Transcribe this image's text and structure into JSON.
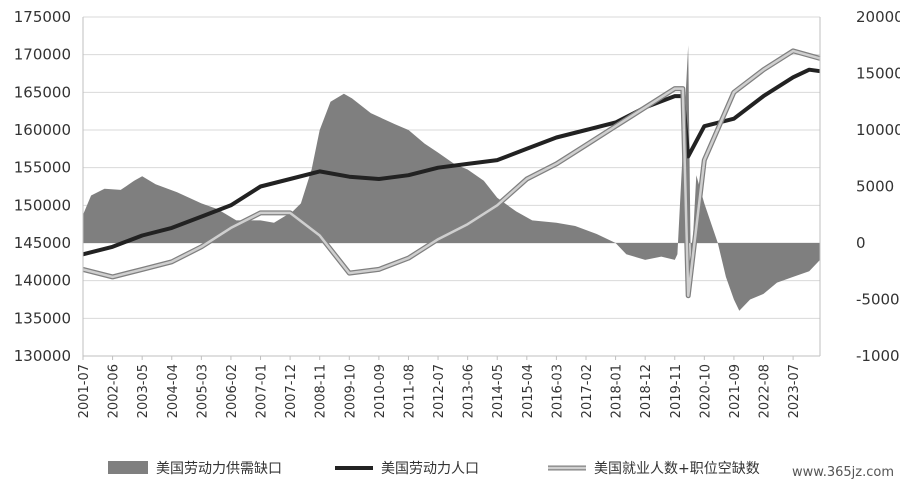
{
  "chart_data": {
    "type": "line",
    "left_axis": {
      "ticks": [
        130000,
        135000,
        140000,
        145000,
        150000,
        155000,
        160000,
        165000,
        170000,
        175000
      ],
      "ylim": [
        130000,
        175000
      ]
    },
    "right_axis": {
      "ticks": [
        -10000,
        -5000,
        0,
        5000,
        10000,
        15000,
        20000
      ],
      "ylim": [
        -10000,
        20000
      ]
    },
    "x_range": [
      "2001-07",
      "2024-05"
    ],
    "x_tick_labels": [
      "2001-07",
      "2002-06",
      "2003-05",
      "2004-04",
      "2005-03",
      "2006-02",
      "2007-01",
      "2007-12",
      "2008-11",
      "2009-10",
      "2010-09",
      "2011-08",
      "2012-07",
      "2013-06",
      "2014-05",
      "2015-04",
      "2016-03",
      "2017-02",
      "2018-01",
      "2018-12",
      "2019-11",
      "2020-10",
      "2021-09",
      "2022-08",
      "2023-07"
    ],
    "legend_position": "bottom",
    "grid": "horizontal",
    "series": [
      {
        "name": "美国劳动力供需缺口",
        "kind": "area",
        "axis": "right",
        "color": "#7f7f7f",
        "points": [
          [
            "2001-07",
            2500
          ],
          [
            "2001-10",
            4200
          ],
          [
            "2002-03",
            4800
          ],
          [
            "2002-09",
            4700
          ],
          [
            "2003-02",
            5500
          ],
          [
            "2003-05",
            5900
          ],
          [
            "2003-10",
            5200
          ],
          [
            "2004-06",
            4500
          ],
          [
            "2005-03",
            3500
          ],
          [
            "2005-09",
            3000
          ],
          [
            "2006-04",
            2000
          ],
          [
            "2007-01",
            2000
          ],
          [
            "2007-06",
            1800
          ],
          [
            "2008-01",
            2800
          ],
          [
            "2008-04",
            3500
          ],
          [
            "2008-08",
            6500
          ],
          [
            "2008-11",
            10000
          ],
          [
            "2009-03",
            12500
          ],
          [
            "2009-08",
            13200
          ],
          [
            "2009-11",
            12800
          ],
          [
            "2010-06",
            11500
          ],
          [
            "2011-03",
            10500
          ],
          [
            "2011-08",
            10000
          ],
          [
            "2012-02",
            8800
          ],
          [
            "2012-07",
            8000
          ],
          [
            "2013-01",
            7000
          ],
          [
            "2013-06",
            6500
          ],
          [
            "2013-12",
            5500
          ],
          [
            "2014-05",
            4000
          ],
          [
            "2014-12",
            2800
          ],
          [
            "2015-06",
            2000
          ],
          [
            "2016-03",
            1800
          ],
          [
            "2016-10",
            1500
          ],
          [
            "2017-06",
            800
          ],
          [
            "2018-01",
            0
          ],
          [
            "2018-05",
            -1000
          ],
          [
            "2018-12",
            -1500
          ],
          [
            "2019-06",
            -1200
          ],
          [
            "2019-11",
            -1500
          ],
          [
            "2019-12",
            -1000
          ],
          [
            "2020-04",
            17500
          ],
          [
            "2020-05",
            -3000
          ],
          [
            "2020-07",
            6000
          ],
          [
            "2020-10",
            3500
          ],
          [
            "2021-03",
            0
          ],
          [
            "2021-06",
            -3000
          ],
          [
            "2021-09",
            -5000
          ],
          [
            "2021-11",
            -6000
          ],
          [
            "2022-03",
            -5000
          ],
          [
            "2022-08",
            -4500
          ],
          [
            "2023-01",
            -3500
          ],
          [
            "2023-07",
            -3000
          ],
          [
            "2024-01",
            -2500
          ],
          [
            "2024-05",
            -1500
          ]
        ]
      },
      {
        "name": "美国劳动力人口",
        "kind": "line",
        "axis": "left",
        "color": "#222222",
        "points": [
          [
            "2001-07",
            143500
          ],
          [
            "2002-06",
            144500
          ],
          [
            "2003-05",
            146000
          ],
          [
            "2004-04",
            147000
          ],
          [
            "2005-03",
            148500
          ],
          [
            "2006-02",
            150000
          ],
          [
            "2007-01",
            152500
          ],
          [
            "2007-12",
            153500
          ],
          [
            "2008-11",
            154500
          ],
          [
            "2009-10",
            153800
          ],
          [
            "2010-09",
            153500
          ],
          [
            "2011-08",
            154000
          ],
          [
            "2012-07",
            155000
          ],
          [
            "2013-06",
            155500
          ],
          [
            "2014-05",
            156000
          ],
          [
            "2015-04",
            157500
          ],
          [
            "2016-03",
            159000
          ],
          [
            "2017-02",
            160000
          ],
          [
            "2018-01",
            161000
          ],
          [
            "2018-12",
            163000
          ],
          [
            "2019-11",
            164500
          ],
          [
            "2020-02",
            164500
          ],
          [
            "2020-04",
            156500
          ],
          [
            "2020-10",
            160500
          ],
          [
            "2021-09",
            161500
          ],
          [
            "2022-08",
            164500
          ],
          [
            "2023-07",
            167000
          ],
          [
            "2024-01",
            168000
          ],
          [
            "2024-05",
            167800
          ]
        ]
      },
      {
        "name": "美国就业人数+职位空缺数",
        "kind": "line",
        "axis": "left",
        "color": "#a6a6a6",
        "points": [
          [
            "2001-07",
            141500
          ],
          [
            "2002-06",
            140500
          ],
          [
            "2003-05",
            141500
          ],
          [
            "2004-04",
            142500
          ],
          [
            "2005-03",
            144500
          ],
          [
            "2006-02",
            147000
          ],
          [
            "2007-01",
            149000
          ],
          [
            "2007-12",
            149000
          ],
          [
            "2008-11",
            146000
          ],
          [
            "2009-10",
            141000
          ],
          [
            "2010-09",
            141500
          ],
          [
            "2011-08",
            143000
          ],
          [
            "2012-07",
            145500
          ],
          [
            "2013-06",
            147500
          ],
          [
            "2014-05",
            150000
          ],
          [
            "2015-04",
            153500
          ],
          [
            "2016-03",
            155500
          ],
          [
            "2017-02",
            158000
          ],
          [
            "2018-01",
            160500
          ],
          [
            "2018-12",
            163000
          ],
          [
            "2019-11",
            165500
          ],
          [
            "2020-02",
            165500
          ],
          [
            "2020-04",
            138000
          ],
          [
            "2020-10",
            156000
          ],
          [
            "2021-09",
            165000
          ],
          [
            "2022-08",
            168000
          ],
          [
            "2023-07",
            170500
          ],
          [
            "2024-05",
            169500
          ]
        ]
      }
    ]
  },
  "watermark": "www.365jz.com"
}
